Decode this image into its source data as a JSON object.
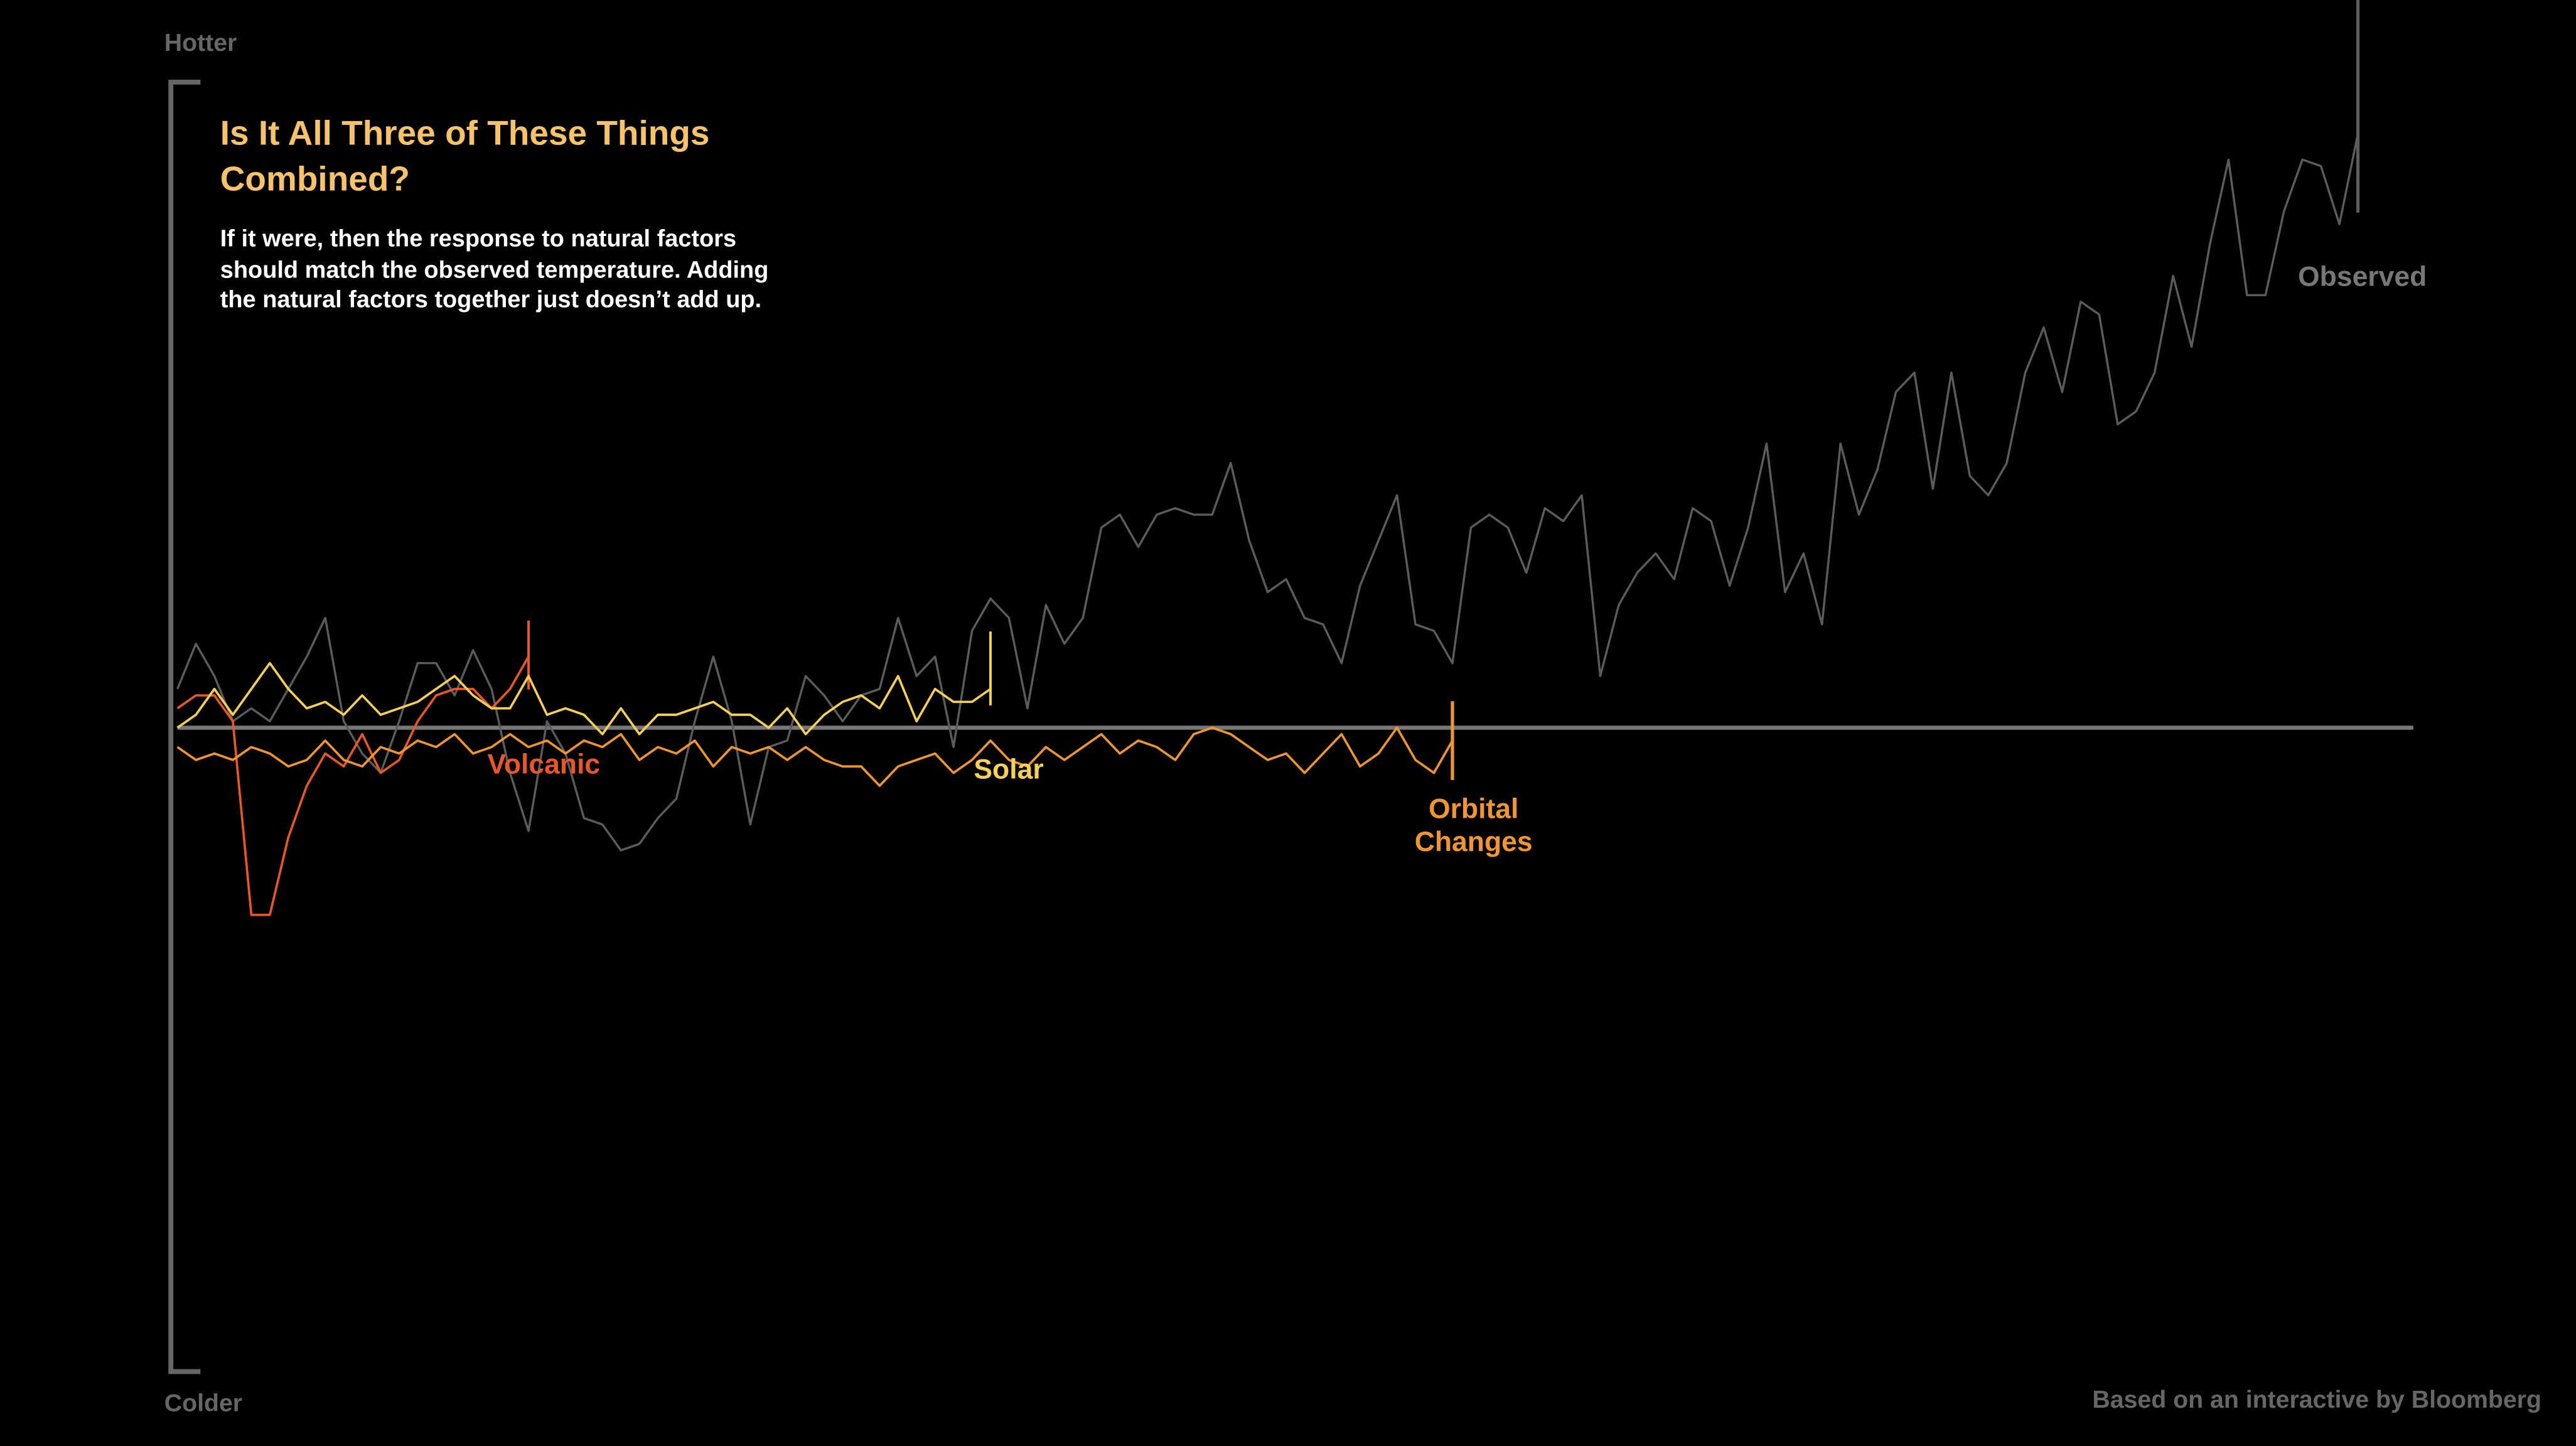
{
  "chart_data": {
    "type": "line",
    "title": "Is It All Three of These Things Combined?",
    "subtitle": "If it were, then the response to natural factors should match the observed temperature. Adding the natural factors together just doesn’t add up.",
    "y_top_label": "Hotter",
    "y_bottom_label": "Colder",
    "source": "Based on an interactive by Bloomberg",
    "xlim": [
      0,
      121
    ],
    "ylim": [
      -1,
      1
    ],
    "x": [
      0,
      1,
      2,
      3,
      4,
      5,
      6,
      7,
      8,
      9,
      10,
      11,
      12,
      13,
      14,
      15,
      16,
      17,
      18,
      19,
      20,
      21,
      22,
      23,
      24,
      25,
      26,
      27,
      28,
      29,
      30,
      31,
      32,
      33,
      34,
      35,
      36,
      37,
      38,
      39,
      40,
      41,
      42,
      43,
      44,
      45,
      46,
      47,
      48,
      49,
      50,
      51,
      52,
      53,
      54,
      55,
      56,
      57,
      58,
      59,
      60,
      61,
      62,
      63,
      64,
      65,
      66,
      67,
      68,
      69,
      70,
      71,
      72,
      73,
      74,
      75,
      76,
      77,
      78,
      79,
      80,
      81,
      82,
      83,
      84,
      85,
      86,
      87,
      88,
      89,
      90,
      91,
      92,
      93,
      94,
      95,
      96,
      97,
      98,
      99,
      100,
      101,
      102,
      103,
      104,
      105,
      106,
      107,
      108,
      109,
      110,
      111,
      112,
      113,
      114,
      115,
      116,
      117,
      118
    ],
    "series": [
      {
        "name": "Observed",
        "color": "#5c5c5c",
        "values": [
          0.06,
          0.13,
          0.08,
          0.01,
          0.03,
          0.01,
          0.06,
          0.11,
          0.17,
          0.01,
          -0.04,
          -0.07,
          0.01,
          0.1,
          0.1,
          0.05,
          0.12,
          0.06,
          -0.07,
          -0.16,
          0.01,
          -0.04,
          -0.14,
          -0.15,
          -0.19,
          -0.18,
          -0.14,
          -0.11,
          0.01,
          0.11,
          0.01,
          -0.15,
          -0.03,
          -0.02,
          0.08,
          0.05,
          0.01,
          0.05,
          0.06,
          0.17,
          0.08,
          0.11,
          -0.03,
          0.15,
          0.2,
          0.17,
          0.03,
          0.19,
          0.13,
          0.17,
          0.31,
          0.33,
          0.28,
          0.33,
          0.34,
          0.33,
          0.33,
          0.41,
          0.29,
          0.21,
          0.23,
          0.17,
          0.16,
          0.1,
          0.22,
          0.29,
          0.36,
          0.16,
          0.15,
          0.1,
          0.31,
          0.33,
          0.31,
          0.24,
          0.34,
          0.32,
          0.36,
          0.08,
          0.19,
          0.24,
          0.27,
          0.23,
          0.34,
          0.32,
          0.22,
          0.31,
          0.44,
          0.21,
          0.27,
          0.16,
          0.44,
          0.33,
          0.4,
          0.52,
          0.55,
          0.37,
          0.55,
          0.39,
          0.36,
          0.41,
          0.55,
          0.62,
          0.52,
          0.66,
          0.64,
          0.47,
          0.49,
          0.55,
          0.7,
          0.59,
          0.75,
          0.88,
          0.67,
          0.67,
          0.8,
          0.88,
          0.87,
          0.78,
          0.92
        ]
      },
      {
        "name": "Volcanic",
        "color": "#e8572a",
        "values": [
          0.03,
          0.05,
          0.05,
          0.01,
          -0.29,
          -0.29,
          -0.17,
          -0.09,
          -0.04,
          -0.06,
          -0.01,
          -0.07,
          -0.05,
          0.01,
          0.05,
          0.06,
          0.06,
          0.03,
          0.06,
          0.11,
          null,
          null,
          null,
          null,
          null,
          null,
          null,
          null,
          null,
          null,
          null,
          null,
          null,
          null,
          null,
          null,
          null,
          null,
          null,
          null,
          null,
          null,
          null,
          null,
          null,
          null,
          null,
          null,
          null,
          null,
          null,
          null,
          null,
          null,
          null,
          null,
          null,
          null,
          null,
          null,
          null,
          null,
          null,
          null,
          null,
          null,
          null,
          null,
          null,
          null,
          null,
          null,
          null,
          null,
          null,
          null,
          null,
          null,
          null,
          null,
          null,
          null,
          null,
          null,
          null,
          null,
          null,
          null,
          null,
          null,
          null,
          null,
          null,
          null,
          null,
          null,
          null,
          null,
          null,
          null,
          null,
          null,
          null,
          null,
          null,
          null,
          null,
          null,
          null,
          null,
          null,
          null,
          null,
          null,
          null,
          null,
          null,
          null,
          null
        ]
      },
      {
        "name": "Solar",
        "color": "#f7d155",
        "values": [
          0.0,
          0.02,
          0.06,
          0.02,
          0.06,
          0.1,
          0.06,
          0.03,
          0.04,
          0.02,
          0.05,
          0.02,
          0.03,
          0.04,
          0.06,
          0.08,
          0.05,
          0.03,
          0.03,
          0.08,
          0.02,
          0.03,
          0.02,
          -0.01,
          0.03,
          -0.01,
          0.02,
          0.02,
          0.03,
          0.04,
          0.02,
          0.02,
          0.0,
          0.03,
          -0.01,
          0.02,
          0.04,
          0.05,
          0.03,
          0.08,
          0.01,
          0.06,
          0.04,
          0.04,
          0.06,
          null,
          null,
          null,
          null,
          null,
          null,
          null,
          null,
          null,
          null,
          null,
          null,
          null,
          null,
          null,
          null,
          null,
          null,
          null,
          null,
          null,
          null,
          null,
          null,
          null,
          null,
          null,
          null,
          null,
          null,
          null,
          null,
          null,
          null,
          null,
          null,
          null,
          null,
          null,
          null,
          null,
          null,
          null,
          null,
          null,
          null,
          null,
          null,
          null,
          null,
          null,
          null,
          null,
          null,
          null,
          null,
          null,
          null,
          null,
          null,
          null,
          null,
          null,
          null,
          null,
          null,
          null,
          null,
          null,
          null,
          null,
          null,
          null,
          null
        ]
      },
      {
        "name": "Orbital Changes",
        "color": "#f0962e",
        "values": [
          -0.03,
          -0.05,
          -0.04,
          -0.05,
          -0.03,
          -0.04,
          -0.06,
          -0.05,
          -0.02,
          -0.05,
          -0.06,
          -0.03,
          -0.04,
          -0.02,
          -0.03,
          -0.01,
          -0.04,
          -0.03,
          -0.01,
          -0.03,
          -0.02,
          -0.04,
          -0.02,
          -0.03,
          -0.01,
          -0.05,
          -0.03,
          -0.04,
          -0.02,
          -0.06,
          -0.03,
          -0.04,
          -0.03,
          -0.05,
          -0.03,
          -0.05,
          -0.06,
          -0.06,
          -0.09,
          -0.06,
          -0.05,
          -0.04,
          -0.07,
          -0.05,
          -0.02,
          -0.05,
          -0.06,
          -0.03,
          -0.05,
          -0.03,
          -0.01,
          -0.04,
          -0.02,
          -0.03,
          -0.05,
          -0.01,
          0.0,
          -0.01,
          -0.03,
          -0.05,
          -0.04,
          -0.07,
          -0.04,
          -0.01,
          -0.06,
          -0.04,
          0.0,
          -0.05,
          -0.07,
          -0.02,
          null,
          null,
          null,
          null,
          null,
          null,
          null,
          null,
          null,
          null,
          null,
          null,
          null,
          null,
          null,
          null,
          null,
          null,
          null,
          null,
          null,
          null,
          null,
          null,
          null,
          null,
          null,
          null,
          null,
          null,
          null,
          null,
          null,
          null,
          null,
          null,
          null,
          null,
          null,
          null,
          null,
          null,
          null,
          null,
          null,
          null,
          null,
          null,
          null
        ]
      }
    ]
  }
}
